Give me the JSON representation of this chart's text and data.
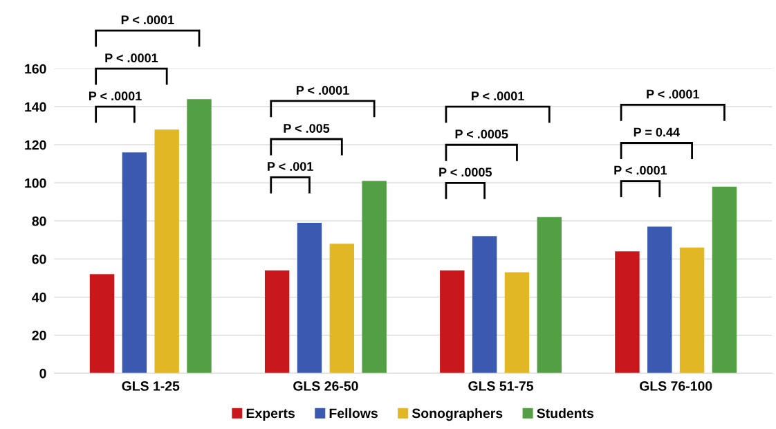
{
  "chart_data": {
    "type": "bar",
    "categories": [
      "GLS 1-25",
      "GLS 26-50",
      "GLS 51-75",
      "GLS 76-100"
    ],
    "series": [
      {
        "name": "Experts",
        "color": "#c8181c",
        "values": [
          52,
          54,
          54,
          64
        ]
      },
      {
        "name": "Fellows",
        "color": "#3a59b0",
        "values": [
          116,
          79,
          72,
          77
        ]
      },
      {
        "name": "Sonographers",
        "color": "#e2b726",
        "values": [
          128,
          68,
          53,
          66
        ]
      },
      {
        "name": "Students",
        "color": "#53a044",
        "values": [
          144,
          101,
          82,
          98
        ]
      }
    ],
    "ylim": [
      0,
      160
    ],
    "yticks": [
      0,
      20,
      40,
      60,
      80,
      100,
      120,
      140,
      160
    ],
    "grid": "y",
    "legend": "bottom",
    "annotations": [
      "P < .0001",
      "P < .0001",
      "P < .0001",
      "P < .001",
      "P < .005",
      "P < .0001",
      "P < .0005",
      "P < .0005",
      "P < .0001",
      "P < .0001",
      "P = 0.44",
      "P < .0001"
    ]
  }
}
